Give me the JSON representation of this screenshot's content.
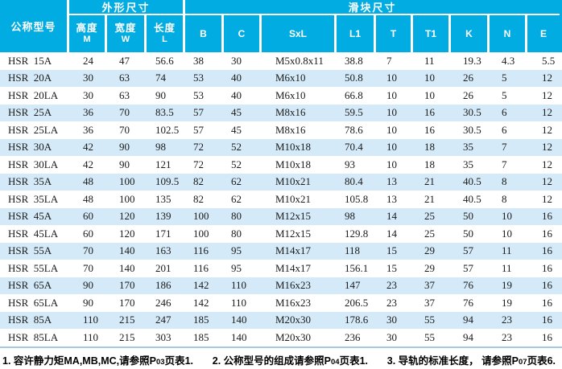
{
  "table": {
    "header": {
      "model": "公称型号",
      "outer_group": "外形尺寸",
      "slider_group": "滑块尺寸",
      "outer_cols": [
        {
          "cn": "高度",
          "en": "M"
        },
        {
          "cn": "宽度",
          "en": "W"
        },
        {
          "cn": "长度",
          "en": "L"
        }
      ],
      "slider_cols": [
        "B",
        "C",
        "SxL",
        "L1",
        "T",
        "T1",
        "K",
        "N",
        "E"
      ]
    },
    "rows": [
      [
        "HSR  15A",
        "24",
        "47",
        "56.6",
        "38",
        "30",
        "M5x0.8x11",
        "38.8",
        "7",
        "11",
        "19.3",
        "4.3",
        "5.5"
      ],
      [
        "HSR  20A",
        "30",
        "63",
        "74",
        "53",
        "40",
        "M6x10",
        "50.8",
        "10",
        "10",
        "26",
        "5",
        "12"
      ],
      [
        "HSR  20LA",
        "30",
        "63",
        "90",
        "53",
        "40",
        "M6x10",
        "66.8",
        "10",
        "10",
        "26",
        "5",
        "12"
      ],
      [
        "HSR  25A",
        "36",
        "70",
        "83.5",
        "57",
        "45",
        "M8x16",
        "59.5",
        "10",
        "16",
        "30.5",
        "6",
        "12"
      ],
      [
        "HSR  25LA",
        "36",
        "70",
        "102.5",
        "57",
        "45",
        "M8x16",
        "78.6",
        "10",
        "16",
        "30.5",
        "6",
        "12"
      ],
      [
        "HSR  30A",
        "42",
        "90",
        "98",
        "72",
        "52",
        "M10x18",
        "70.4",
        "10",
        "18",
        "35",
        "7",
        "12"
      ],
      [
        "HSR  30LA",
        "42",
        "90",
        "121",
        "72",
        "52",
        "M10x18",
        "93",
        "10",
        "18",
        "35",
        "7",
        "12"
      ],
      [
        "HSR  35A",
        "48",
        "100",
        "109.5",
        "82",
        "62",
        "M10x21",
        "80.4",
        "13",
        "21",
        "40.5",
        "8",
        "12"
      ],
      [
        "HSR  35LA",
        "48",
        "100",
        "135",
        "82",
        "62",
        "M10x21",
        "105.8",
        "13",
        "21",
        "40.5",
        "8",
        "12"
      ],
      [
        "HSR  45A",
        "60",
        "120",
        "139",
        "100",
        "80",
        "M12x15",
        "98",
        "14",
        "25",
        "50",
        "10",
        "16"
      ],
      [
        "HSR  45LA",
        "60",
        "120",
        "171",
        "100",
        "80",
        "M12x15",
        "129.8",
        "14",
        "25",
        "50",
        "10",
        "16"
      ],
      [
        "HSR  55A",
        "70",
        "140",
        "163",
        "116",
        "95",
        "M14x17",
        "118",
        "15",
        "29",
        "57",
        "11",
        "16"
      ],
      [
        "HSR  55LA",
        "70",
        "140",
        "201",
        "116",
        "95",
        "M14x17",
        "156.1",
        "15",
        "29",
        "57",
        "11",
        "16"
      ],
      [
        "HSR  65A",
        "90",
        "170",
        "186",
        "142",
        "110",
        "M16x23",
        "147",
        "23",
        "37",
        "76",
        "19",
        "16"
      ],
      [
        "HSR  65LA",
        "90",
        "170",
        "246",
        "142",
        "110",
        "M16x23",
        "206.5",
        "23",
        "37",
        "76",
        "19",
        "16"
      ],
      [
        "HSR  85A",
        "110",
        "215",
        "247",
        "185",
        "140",
        "M20x30",
        "178.6",
        "30",
        "55",
        "94",
        "23",
        "16"
      ],
      [
        "HSR  85LA",
        "110",
        "215",
        "303",
        "185",
        "140",
        "M20x30",
        "236",
        "30",
        "55",
        "94",
        "23",
        "16"
      ]
    ]
  },
  "footnotes": [
    {
      "prefix": "1. 容许静力矩MA,MB,MC,请参照P",
      "page": "03",
      "suffix": "页表1."
    },
    {
      "prefix": "2. 公称型号的组成请参照P",
      "page": "04",
      "suffix": "页表1."
    },
    {
      "prefix": "3. 导轨的标准长度， 请参照P",
      "page": "07",
      "suffix": "页表6."
    }
  ],
  "colors": {
    "header_bg": "#00ACE2",
    "stripe_bg": "#D5EAF8",
    "header_text": "#FFFFFF",
    "body_text": "#1A1A1A",
    "bottom_line": "#A3C9E6"
  }
}
